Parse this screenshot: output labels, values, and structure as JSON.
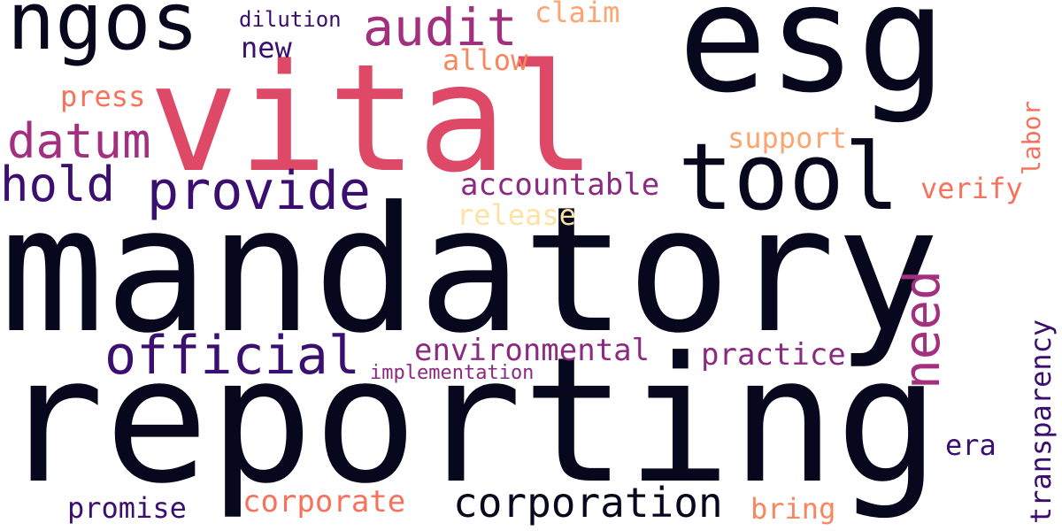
{
  "words": [
    {
      "text": "mandatory",
      "color": "#07071d"
    },
    {
      "text": "reporting",
      "color": "#07071d"
    },
    {
      "text": "esg",
      "color": "#07071d"
    },
    {
      "text": "vital",
      "color": "#de4968"
    },
    {
      "text": "tool",
      "color": "#07071d"
    },
    {
      "text": "ngos",
      "color": "#07071d"
    },
    {
      "text": "provide",
      "color": "#3b0f70"
    },
    {
      "text": "official",
      "color": "#3b0f70"
    },
    {
      "text": "corporation",
      "color": "#07071d"
    },
    {
      "text": "audit",
      "color": "#a3307e"
    },
    {
      "text": "datum",
      "color": "#a3307e"
    },
    {
      "text": "hold",
      "color": "#3b0f70"
    },
    {
      "text": "need",
      "color": "#a3307e"
    },
    {
      "text": "transparency",
      "color": "#3b0f70"
    },
    {
      "text": "accountable",
      "color": "#8c2981"
    },
    {
      "text": "environmental",
      "color": "#8c2981"
    },
    {
      "text": "practice",
      "color": "#8c2981"
    },
    {
      "text": "corporate",
      "color": "#f7725c"
    },
    {
      "text": "promise",
      "color": "#3b0f70"
    },
    {
      "text": "support",
      "color": "#fca570"
    },
    {
      "text": "verify",
      "color": "#f7725c"
    },
    {
      "text": "release",
      "color": "#fde2a5"
    },
    {
      "text": "claim",
      "color": "#fca570"
    },
    {
      "text": "allow",
      "color": "#f8865e"
    },
    {
      "text": "press",
      "color": "#f7725c"
    },
    {
      "text": "new",
      "color": "#3b0f70"
    },
    {
      "text": "dilution",
      "color": "#3b0f70"
    },
    {
      "text": "labor",
      "color": "#f7725c"
    },
    {
      "text": "era",
      "color": "#3b0f70"
    },
    {
      "text": "bring",
      "color": "#f8865e"
    },
    {
      "text": "implementation",
      "color": "#8c2981"
    }
  ]
}
